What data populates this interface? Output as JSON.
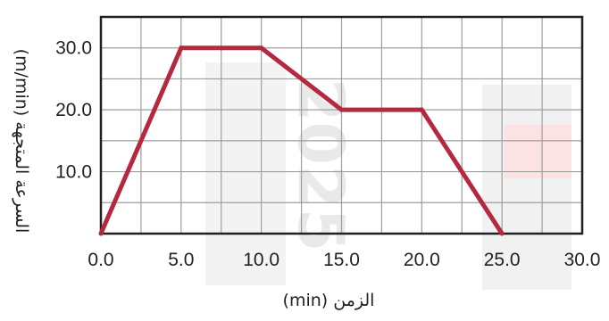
{
  "chart_data": {
    "type": "line",
    "xlabel": "الزمن (min)",
    "ylabel": "السرعة المتجهة (m/min)",
    "x_ticks": [
      "0.0",
      "5.0",
      "10.0",
      "15.0",
      "20.0",
      "25.0",
      "30.0"
    ],
    "y_ticks": [
      "10.0",
      "20.0",
      "30.0"
    ],
    "xlim": [
      0,
      30
    ],
    "ylim": [
      0,
      35
    ],
    "grid": true,
    "grid_step": {
      "x": 2.5,
      "y": 5
    },
    "series": [
      {
        "x": [
          0,
          5,
          10,
          15,
          20,
          25
        ],
        "y": [
          0,
          30,
          30,
          20,
          20,
          0
        ],
        "color": "#b5283f"
      }
    ]
  },
  "watermark": "2025",
  "colors": {
    "grid": "#9e9e9e",
    "frame": "#231f20",
    "line": "#b5283f"
  }
}
